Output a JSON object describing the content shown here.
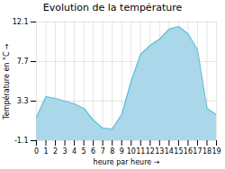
{
  "chart_data": {
    "type": "area",
    "title": "Evolution de la température",
    "xlabel": "heure par heure",
    "ylabel": "Température en °C",
    "x": [
      0,
      1,
      2,
      3,
      4,
      5,
      6,
      7,
      8,
      9,
      10,
      11,
      12,
      13,
      14,
      15,
      16,
      17,
      18,
      19
    ],
    "series": [
      {
        "type": "area",
        "color": "#aad8ea",
        "values": [
          1.5,
          3.8,
          3.6,
          3.3,
          3.0,
          2.5,
          1.2,
          0.3,
          0.2,
          1.8,
          5.5,
          8.5,
          9.5,
          10.2,
          11.3,
          11.6,
          10.8,
          9.0,
          2.5,
          1.8
        ]
      },
      {
        "type": "line",
        "color": "#60c0d8",
        "values": [
          1.5,
          3.8,
          3.6,
          3.3,
          3.0,
          2.5,
          1.2,
          0.3,
          0.2,
          1.8,
          5.5,
          8.5,
          9.5,
          10.2,
          11.3,
          11.6,
          10.8,
          9.0,
          2.5,
          1.8
        ]
      }
    ],
    "xlim": [
      0,
      19
    ],
    "ylim": [
      -1.1,
      12.1
    ],
    "xticks": [
      0,
      1,
      2,
      3,
      4,
      5,
      6,
      7,
      8,
      9,
      10,
      11,
      12,
      13,
      14,
      15,
      16,
      17,
      18,
      19
    ],
    "yticks": [
      -1.1,
      3.3,
      7.7,
      12.1
    ],
    "grid": true
  }
}
